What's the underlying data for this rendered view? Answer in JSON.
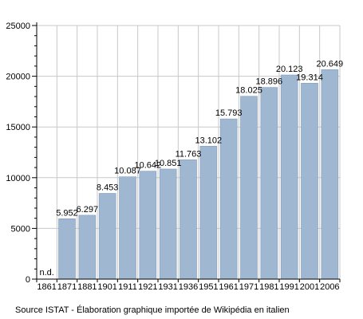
{
  "chart_data": {
    "type": "bar",
    "categories": [
      "1861",
      "1871",
      "1881",
      "1901",
      "1911",
      "1921",
      "1931",
      "1936",
      "1951",
      "1961",
      "1971",
      "1981",
      "1991",
      "2001",
      "2006"
    ],
    "values": [
      null,
      5952,
      6297,
      8453,
      10087,
      10642,
      10851,
      11763,
      13102,
      15793,
      18025,
      18896,
      20123,
      19314,
      20649
    ],
    "value_labels": [
      "n.d.",
      "5.952",
      "6.297",
      "8.453",
      "10.087",
      "10.642",
      "10.851",
      "11.763",
      "13.102",
      "15.793",
      "18.025",
      "18.896",
      "20.123",
      "19.314",
      "20.649"
    ],
    "ylim": [
      0,
      25000
    ],
    "yticks": [
      0,
      5000,
      10000,
      15000,
      20000,
      25000
    ],
    "ytick_labels": [
      "0",
      "5000",
      "10000",
      "15000",
      "20000",
      "25000"
    ],
    "grid": true,
    "colors": {
      "bar": "#9fb7d1",
      "bar_edge": "#7f9cbf",
      "grid": "#c8c8c8",
      "axis": "#000000"
    }
  },
  "source_note": "Source ISTAT - Élaboration graphique importée de Wikipédia en italien"
}
